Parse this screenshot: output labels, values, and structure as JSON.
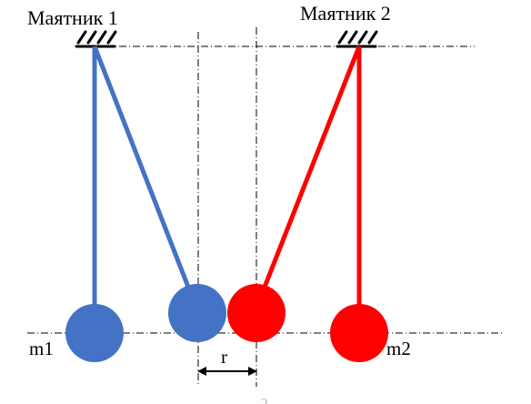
{
  "labels": {
    "pendulum1": "Маятник 1",
    "pendulum2": "Маятник 2",
    "mass1": "m1",
    "mass2": "m2",
    "distance": "r",
    "page_mark": "2"
  },
  "colors": {
    "pendulum1": "#4472c4",
    "pendulum2": "#ff0000",
    "support": "#000000",
    "guide_line": "#000000",
    "background": "#ffffff"
  }
}
